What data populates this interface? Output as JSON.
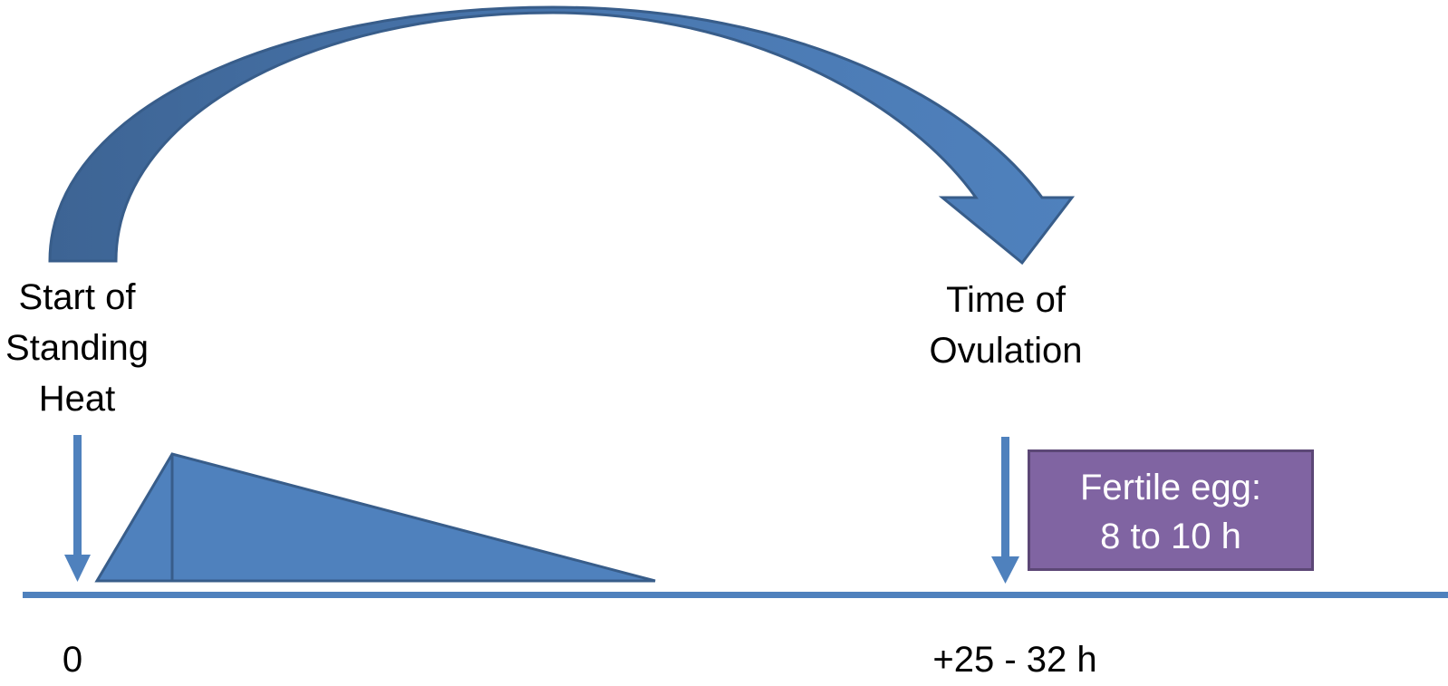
{
  "start_label": {
    "lines": [
      "Start of",
      "Standing",
      "Heat"
    ]
  },
  "ovulation_label": {
    "lines": [
      "Time of",
      "Ovulation"
    ]
  },
  "fertile_egg": {
    "lines": [
      "Fertile egg:",
      "8 to 10 h"
    ]
  },
  "timeline": {
    "start_tick": "0",
    "ovulation_tick": "+25 - 32 h"
  },
  "colors": {
    "arrow_fill": "#4F81BD",
    "arrow_stroke": "#385D8A",
    "timeline": "#4F81BD",
    "fertile_box_fill": "#8064A2",
    "fertile_box_stroke": "#5C4776",
    "text": "#000000",
    "fertile_box_text": "#FFFFFF"
  }
}
